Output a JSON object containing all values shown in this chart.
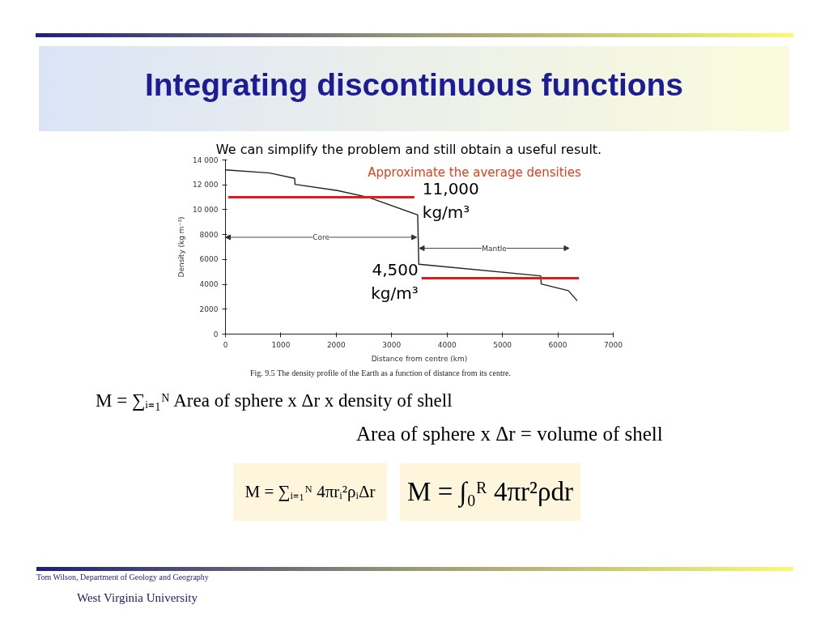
{
  "chart_data": {
    "type": "line",
    "title": "Integrating discontinuous functions",
    "subtitle": "We can simplify the problem and still obtain a useful result.",
    "xlabel": "Distance from centre (km)",
    "ylabel": "Density (kg m⁻³)",
    "xlim": [
      0,
      7000
    ],
    "ylim": [
      0,
      14000
    ],
    "xticks": [
      0,
      1000,
      2000,
      3000,
      4000,
      5000,
      6000,
      7000
    ],
    "yticks": [
      0,
      2000,
      4000,
      6000,
      8000,
      {
        "value": 10000,
        "label": "10 000"
      },
      {
        "value": 12000,
        "label": "12 000"
      },
      {
        "value": 14000,
        "label": "14 000"
      }
    ],
    "series": [
      {
        "color": "#222222",
        "x": [
          0,
          800,
          1250,
          1255,
          2020,
          2580,
          3470,
          3490,
          5690,
          5700,
          6190,
          6350
        ],
        "values": [
          13200,
          12950,
          12520,
          12040,
          11540,
          11000,
          9580,
          5620,
          4680,
          4030,
          3490,
          2680
        ]
      },
      {
        "color": "#e31b1b",
        "x": [
          50,
          3410
        ],
        "values": [
          11000,
          11000
        ]
      },
      {
        "color": "#e31b1b",
        "x": [
          3540,
          6380
        ],
        "values": [
          4500,
          4500
        ]
      }
    ],
    "annotations": [
      "Approximate the average densities",
      "Core",
      "Mantle",
      {
        "text": "11,000 kg/m³",
        "x": 3410,
        "y": 11000
      },
      {
        "text": "4,500 kg/m³",
        "x": 3540,
        "y": 4500
      },
      "Fig. 9.5 The density profile of the Earth as a function of distance from its centre.",
      "M = ∑ᵢ₌₁ᴺ Area of sphere x Δr x density of shell",
      "Area of sphere x Δr = volume of shell",
      "M = ∑ᵢ₌₁ᴺ 4πrᵢ²ρᵢΔr",
      "M = ∫₀ᴿ 4πr²ρdr",
      "Tom Wilson, Department of Geology and Geography",
      "West Virginia University"
    ]
  }
}
